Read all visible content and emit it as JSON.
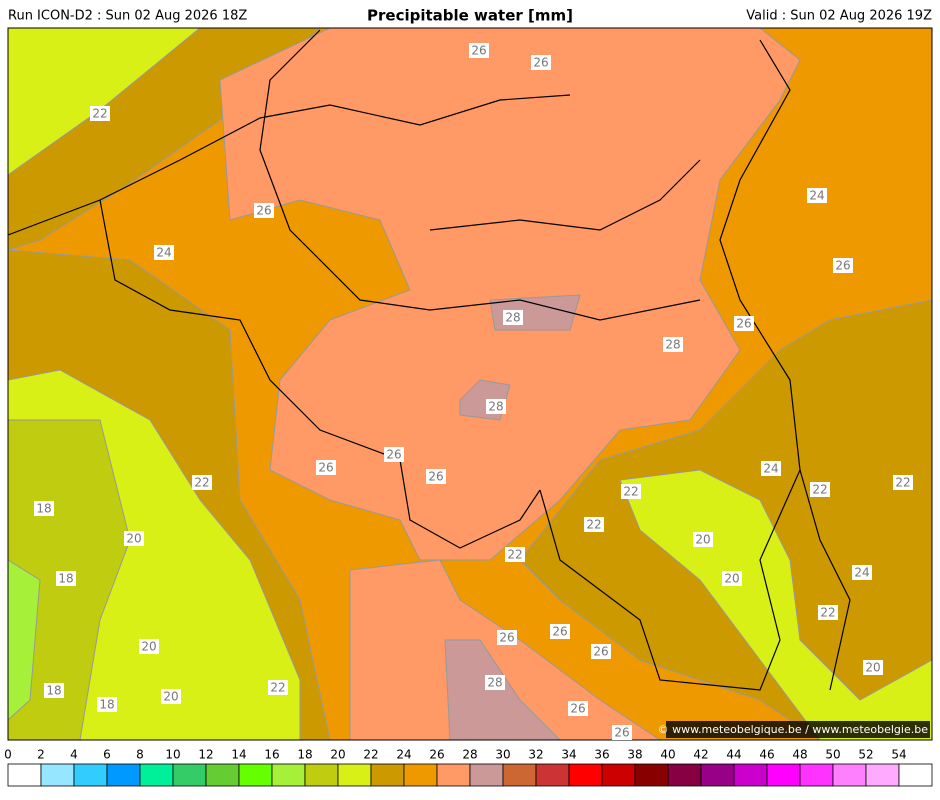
{
  "header": {
    "run": "Run ICON-D2 : Sun 02 Aug 2026 18Z",
    "title": "Precipitable water [mm]",
    "valid": "Valid : Sun 02 Aug 2026 19Z"
  },
  "map": {
    "contour_labels": [
      26,
      26,
      22,
      26,
      24,
      24,
      26,
      28,
      26,
      28,
      28,
      26,
      26,
      26,
      24,
      22,
      22,
      22,
      22,
      18,
      22,
      20,
      20,
      22,
      18,
      24,
      20,
      22,
      26,
      26,
      20,
      26,
      20,
      22,
      28,
      18,
      20,
      18,
      26,
      26
    ],
    "credit": "© www.meteobelgique.be / www.meteobelgie.be"
  },
  "colorbar": {
    "ticks": [
      0,
      2,
      4,
      6,
      8,
      10,
      12,
      14,
      16,
      18,
      20,
      22,
      24,
      26,
      28,
      30,
      32,
      34,
      36,
      38,
      40,
      42,
      44,
      46,
      48,
      50,
      52,
      54
    ],
    "colors": [
      "#ffffff",
      "#96e6ff",
      "#33ccff",
      "#0099ff",
      "#00f09a",
      "#33cc66",
      "#66cc33",
      "#66ff00",
      "#a6f03a",
      "#bfcc10",
      "#d9f016",
      "#cc9900",
      "#ee9900",
      "#ff9966",
      "#cc9999",
      "#cc6633",
      "#cc3333",
      "#ff0000",
      "#cc0000",
      "#880000",
      "#880044",
      "#990088",
      "#cc00cc",
      "#ff00ff",
      "#ff33ff",
      "#ff80ff",
      "#ffaaff",
      "#ffffff"
    ]
  }
}
